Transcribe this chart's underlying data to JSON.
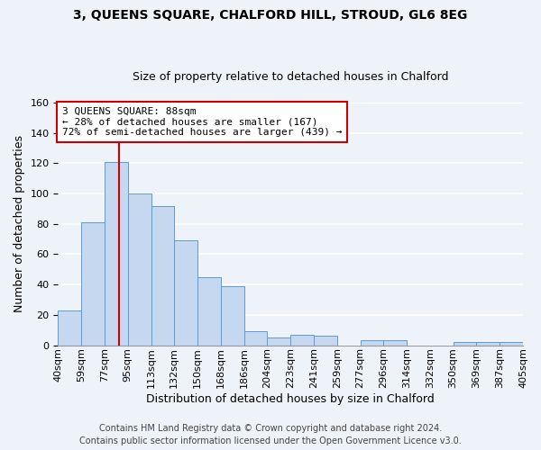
{
  "title": "3, QUEENS SQUARE, CHALFORD HILL, STROUD, GL6 8EG",
  "subtitle": "Size of property relative to detached houses in Chalford",
  "xlabel": "Distribution of detached houses by size in Chalford",
  "ylabel": "Number of detached properties",
  "bar_values": [
    23,
    81,
    121,
    100,
    92,
    69,
    45,
    39,
    9,
    5,
    7,
    6,
    0,
    3,
    3,
    0,
    0,
    2,
    2,
    2
  ],
  "bin_labels": [
    "40sqm",
    "59sqm",
    "77sqm",
    "95sqm",
    "113sqm",
    "132sqm",
    "150sqm",
    "168sqm",
    "186sqm",
    "204sqm",
    "223sqm",
    "241sqm",
    "259sqm",
    "277sqm",
    "296sqm",
    "314sqm",
    "332sqm",
    "350sqm",
    "369sqm",
    "387sqm",
    "405sqm"
  ],
  "bar_color": "#c5d8f0",
  "bar_edge_color": "#5b9bd5",
  "property_line_color": "#cc0000",
  "annotation_text": "3 QUEENS SQUARE: 88sqm\n← 28% of detached houses are smaller (167)\n72% of semi-detached houses are larger (439) →",
  "annotation_box_color": "#ffffff",
  "annotation_box_edge": "#cc0000",
  "ylim": [
    0,
    160
  ],
  "yticks": [
    0,
    20,
    40,
    60,
    80,
    100,
    120,
    140,
    160
  ],
  "footer_line1": "Contains HM Land Registry data © Crown copyright and database right 2024.",
  "footer_line2": "Contains public sector information licensed under the Open Government Licence v3.0.",
  "background_color": "#eef2f9",
  "grid_color": "#ffffff",
  "title_fontsize": 10,
  "subtitle_fontsize": 9,
  "axis_label_fontsize": 9,
  "tick_fontsize": 8,
  "annotation_fontsize": 8,
  "footer_fontsize": 7
}
